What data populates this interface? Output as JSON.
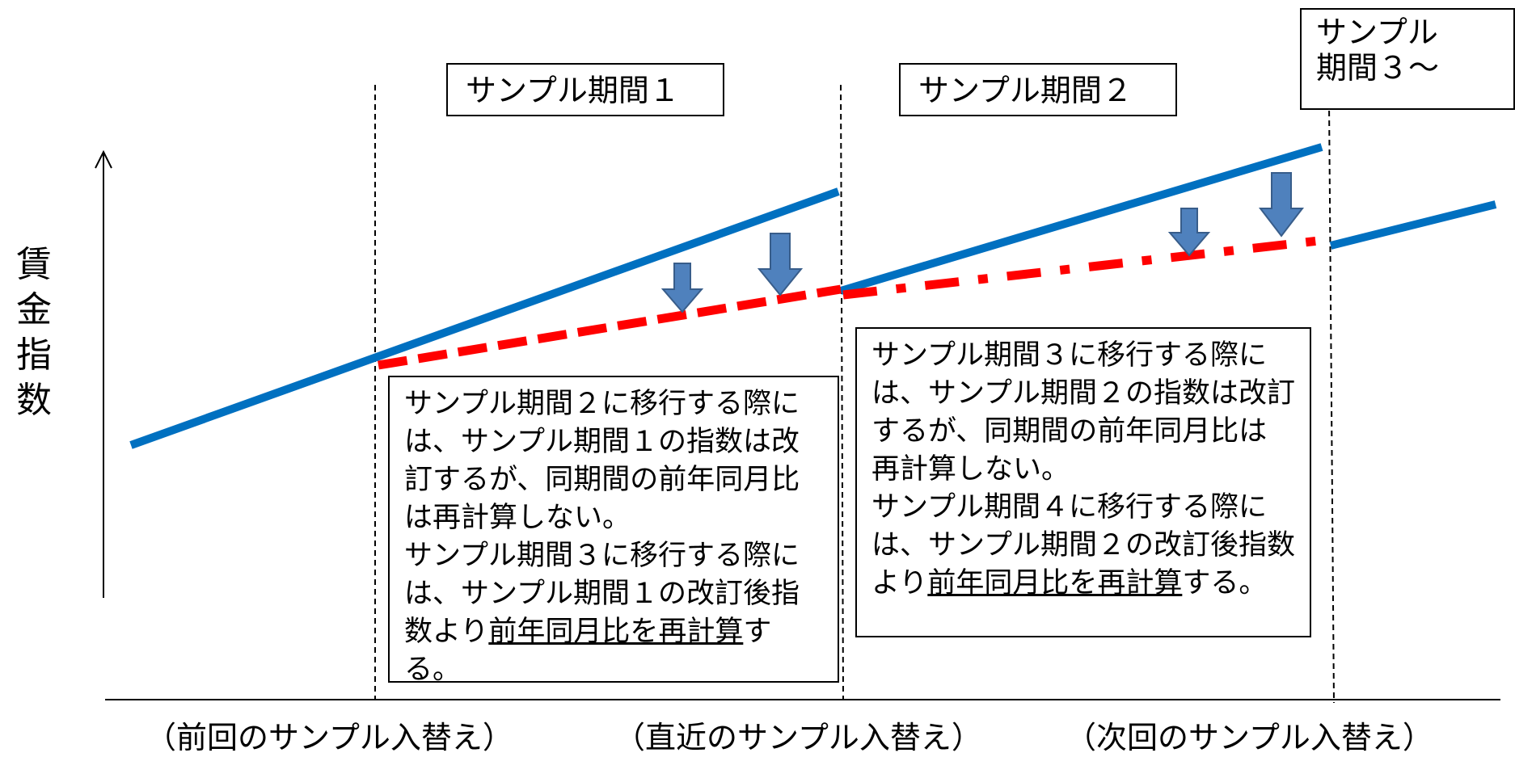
{
  "y_axis_label": [
    "賃",
    "金",
    "指",
    "数"
  ],
  "period_labels": {
    "p1": "サンプル期間１",
    "p2": "サンプル期間２",
    "p3": [
      "サンプル",
      "期間３～"
    ]
  },
  "notes": {
    "left": {
      "line1": "サンプル期間２に移行する際には、サンプル期間１の指数は改訂するが、同期間の前年同月比は再計算しない。",
      "line2_pre": "サンプル期間３に移行する際には、サンプル期間１の改訂後指数より",
      "line2_underlined": "前年同月比を再計算",
      "line2_post": "する。"
    },
    "right": {
      "line1": "サンプル期間３に移行する際には、サンプル期間２の指数は改訂するが、同期間の前年同月比は再計算しない。",
      "line2_pre": "サンプル期間４に移行する際には、サンプル期間２の改訂後指数より",
      "line2_underlined": "前年同月比を再計算",
      "line2_post": "する。"
    }
  },
  "x_captions": {
    "previous": "（前回のサンプル入替え）",
    "latest": "（直近のサンプル入替え）",
    "next": "（次回のサンプル入替え）"
  },
  "colors": {
    "blue_line": "#0070C0",
    "red_dash": "#FF0000",
    "arrow_fill": "#4F81BD",
    "arrow_stroke": "#385D8A"
  }
}
